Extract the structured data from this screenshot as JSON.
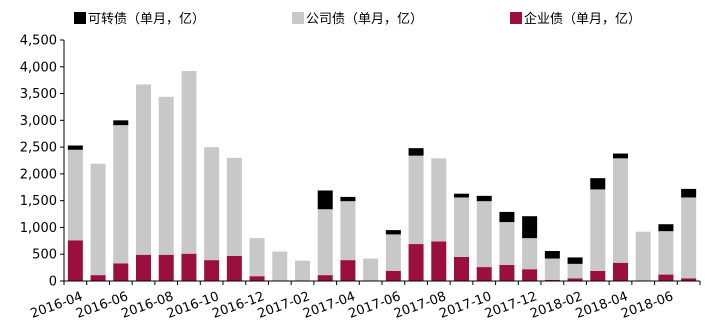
{
  "chart_data": {
    "type": "bar",
    "stacked": true,
    "categories": [
      "2016-04",
      "2016-05",
      "2016-06",
      "2016-07",
      "2016-08",
      "2016-09",
      "2016-10",
      "2016-11",
      "2016-12",
      "2017-01",
      "2017-02",
      "2017-03",
      "2017-04",
      "2017-05",
      "2017-06",
      "2017-07",
      "2017-08",
      "2017-09",
      "2017-10",
      "2017-11",
      "2017-12",
      "2018-01",
      "2018-02",
      "2018-03",
      "2018-04",
      "2018-05",
      "2018-06",
      "2018-07"
    ],
    "x_tick_labels": [
      "2016-04",
      "2016-06",
      "2016-08",
      "2016-10",
      "2016-12",
      "2017-02",
      "2017-04",
      "2017-06",
      "2017-08",
      "2017-10",
      "2017-12",
      "2018-02",
      "2018-04",
      "2018-06"
    ],
    "series": [
      {
        "name": "企业债（单月，亿）",
        "color": "#9b0f3f",
        "values": [
          760,
          110,
          330,
          490,
          490,
          510,
          390,
          470,
          90,
          0,
          0,
          110,
          390,
          10,
          190,
          690,
          740,
          450,
          260,
          300,
          220,
          20,
          50,
          190,
          340,
          0,
          120,
          50
        ]
      },
      {
        "name": "公司债（单月，亿）",
        "color": "#c8c8c8",
        "values": [
          1690,
          2080,
          2580,
          3180,
          2950,
          3410,
          2110,
          1830,
          710,
          550,
          380,
          1230,
          1100,
          410,
          680,
          1650,
          1550,
          1110,
          1230,
          800,
          580,
          400,
          270,
          1520,
          1950,
          920,
          810,
          1510
        ]
      },
      {
        "name": "可转债（单月，亿）",
        "color": "#000000",
        "values": [
          80,
          0,
          90,
          0,
          0,
          0,
          0,
          0,
          0,
          0,
          0,
          350,
          80,
          0,
          80,
          140,
          0,
          70,
          100,
          190,
          410,
          140,
          120,
          210,
          90,
          0,
          130,
          160
        ]
      }
    ],
    "legend_order": [
      2,
      1,
      0
    ],
    "ylim": [
      0,
      4500
    ],
    "y_ticks": [
      "0",
      "500",
      "1,000",
      "1,500",
      "2,000",
      "2,500",
      "3,000",
      "3,500",
      "4,000",
      "4,500"
    ],
    "y_tick_values": [
      0,
      500,
      1000,
      1500,
      2000,
      2500,
      3000,
      3500,
      4000,
      4500
    ],
    "legend_position": "top",
    "grid": false
  }
}
